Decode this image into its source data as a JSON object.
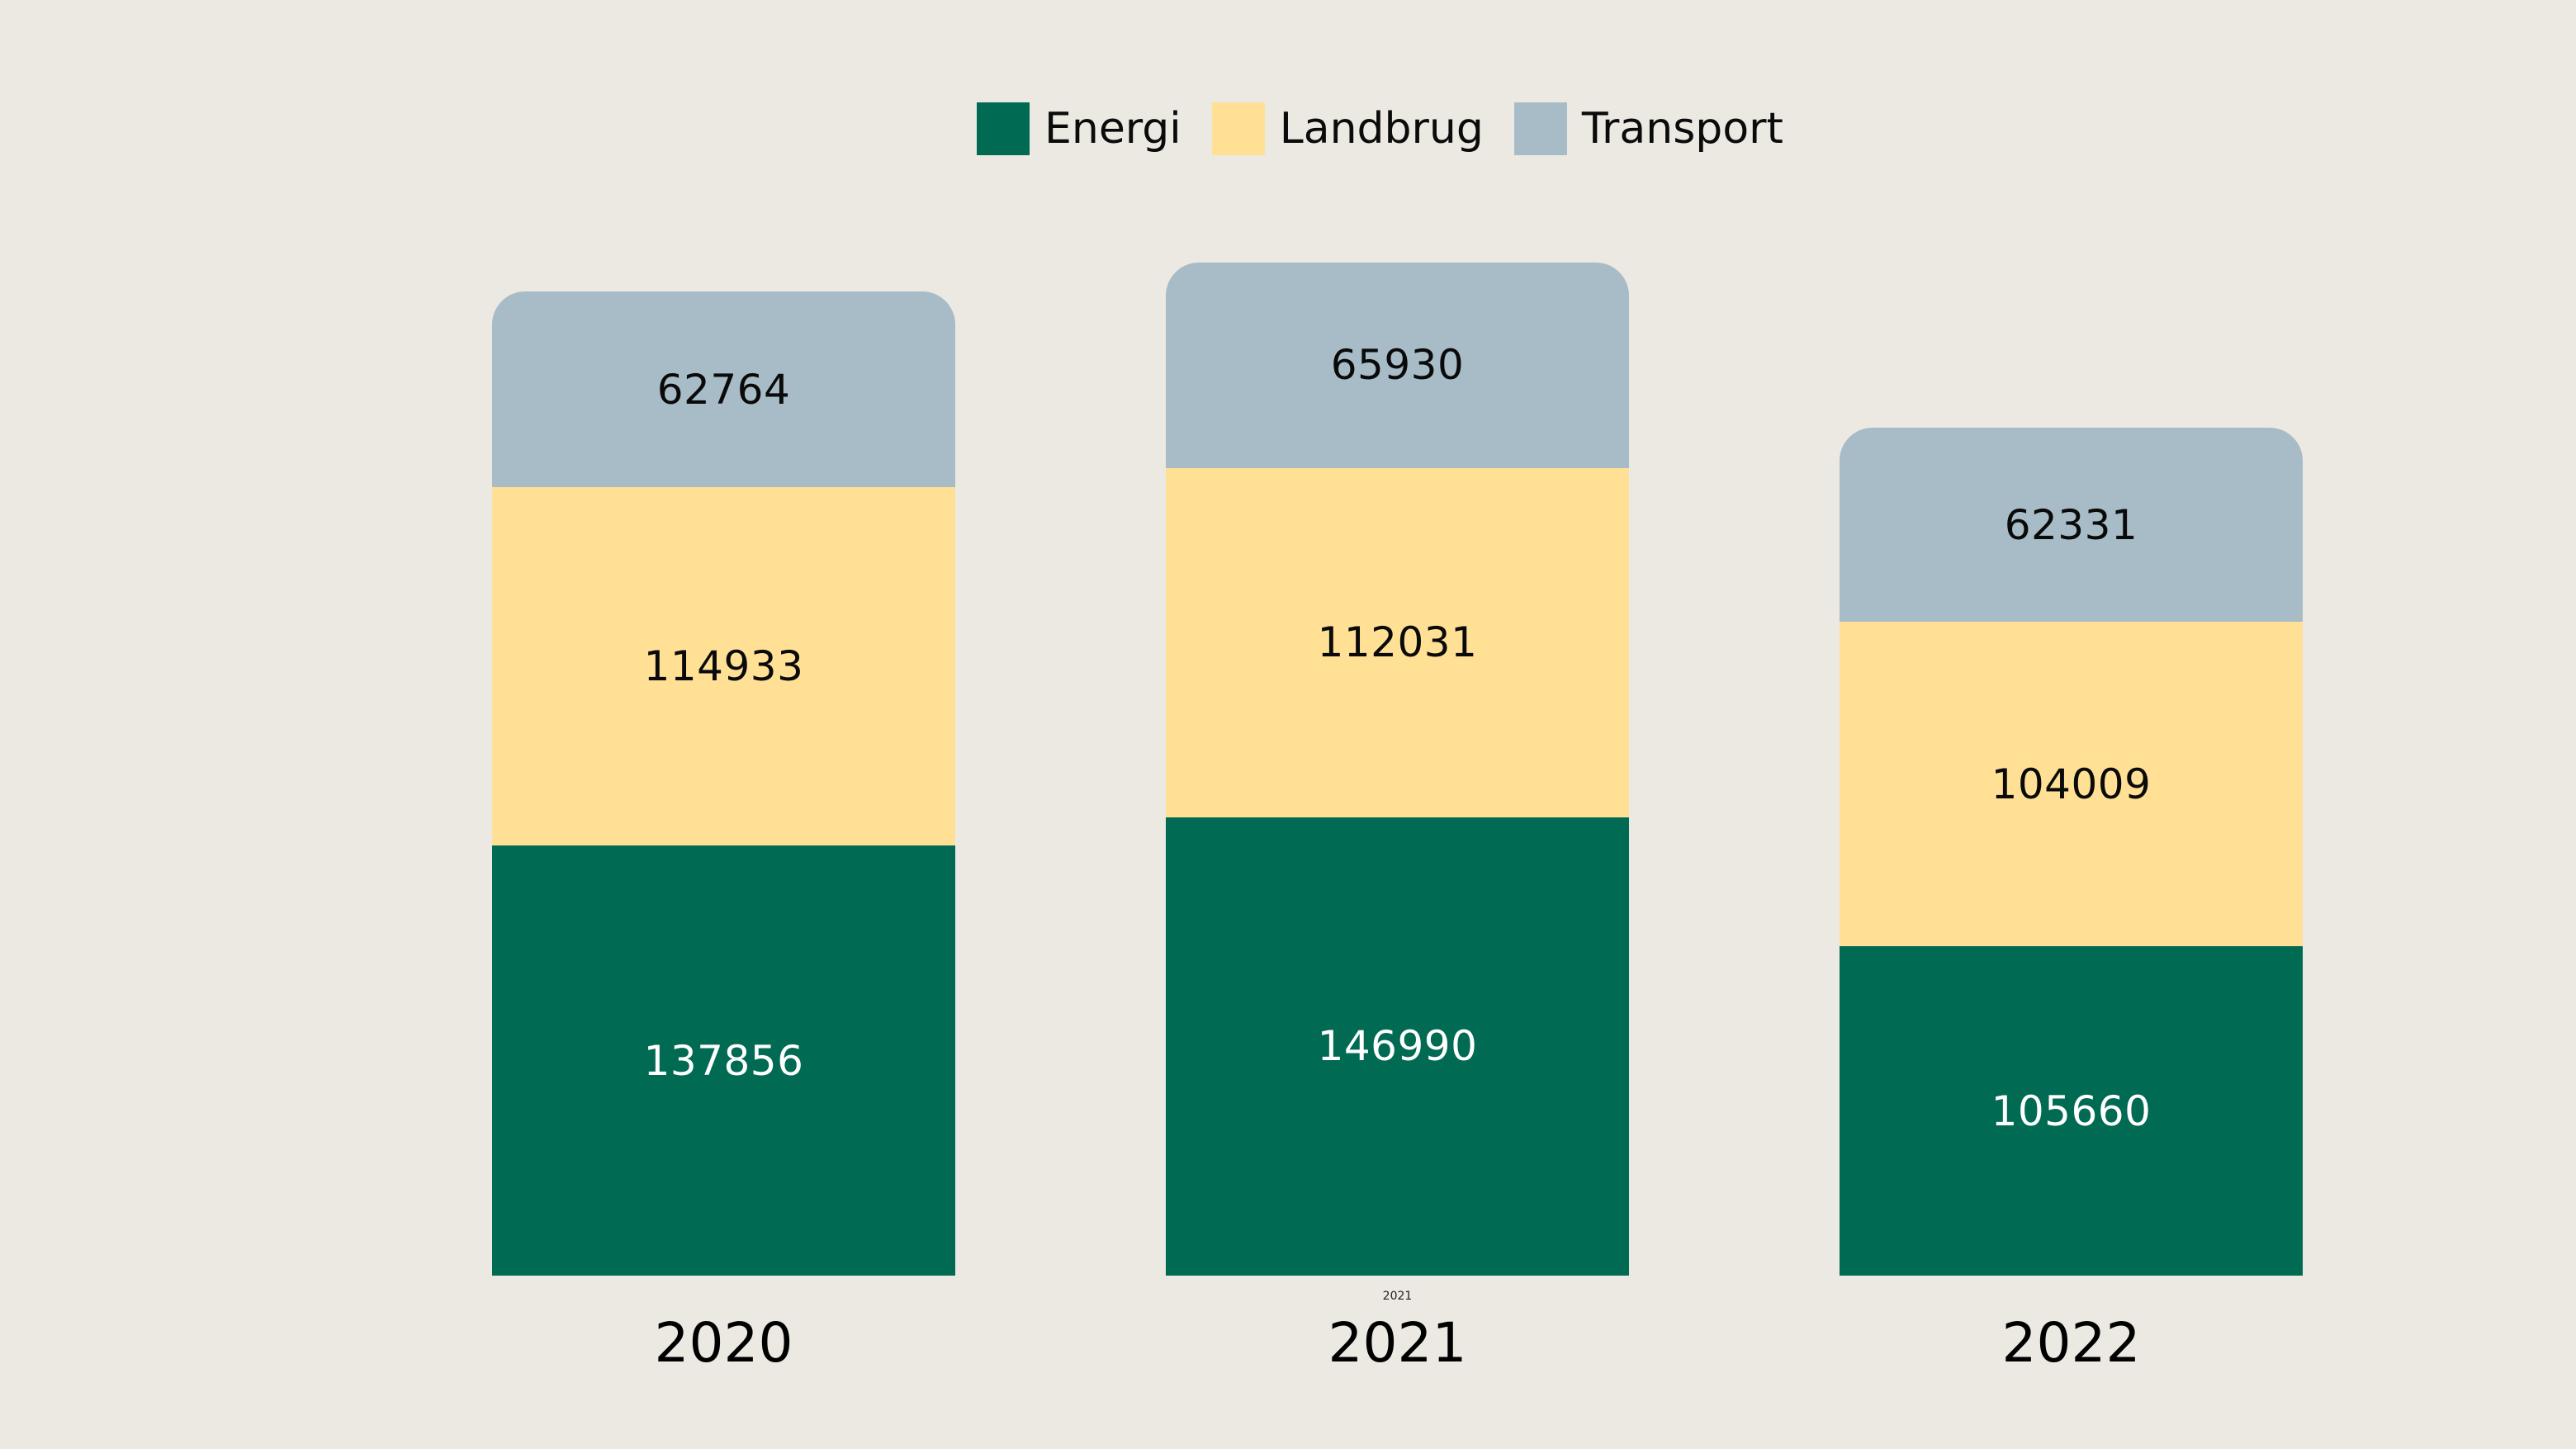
{
  "page": {
    "background": "#ECE9E2"
  },
  "chart_data": {
    "type": "bar",
    "stacked": true,
    "orientation": "vertical",
    "title": "",
    "xlabel": "",
    "ylabel": "",
    "grid": false,
    "axes_visible": false,
    "legend_position": "top-center",
    "categories": [
      "2020",
      "2021",
      "2022"
    ],
    "series": [
      {
        "name": "Energi",
        "color": "#016A53",
        "label_color": "#FFFFFF",
        "values": [
          137856,
          146990,
          105660
        ]
      },
      {
        "name": "Landbrug",
        "color": "#FFE095",
        "label_color": "#0A0A0A",
        "values": [
          114933,
          112031,
          104009
        ]
      },
      {
        "name": "Transport",
        "color": "#A7BCC7",
        "label_color": "#0A0A0A",
        "values": [
          62764,
          65930,
          62331
        ]
      }
    ],
    "totals": [
      315553,
      324951,
      272000
    ],
    "value_label_position": "center"
  },
  "annotations": {
    "mini_label": "2021"
  }
}
